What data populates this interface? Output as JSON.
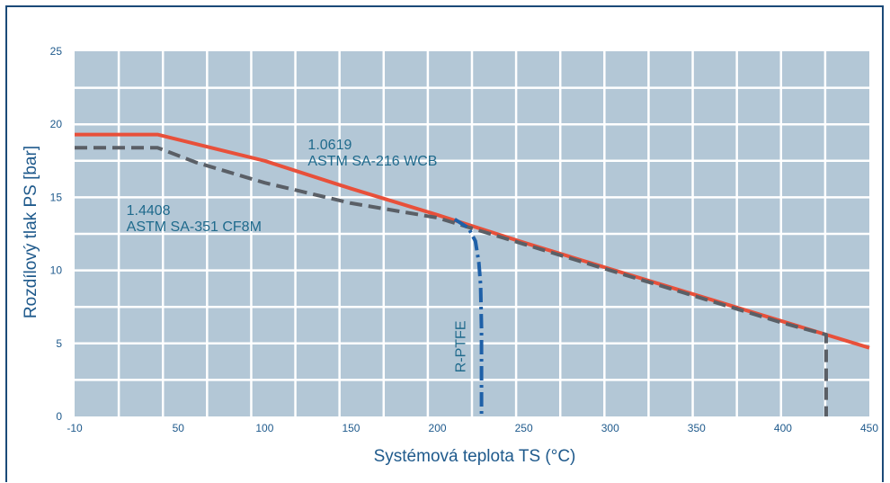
{
  "chart_data": {
    "type": "line",
    "xlabel": "Systémová teplota TS (°C)",
    "ylabel": "Rozdílový tlak PS [bar]",
    "xlim": [
      -10,
      450
    ],
    "ylim": [
      0,
      25
    ],
    "xticks": [
      -10,
      50,
      100,
      150,
      200,
      250,
      300,
      350,
      400,
      450
    ],
    "xtick_labels": [
      "-10",
      "50",
      "100",
      "150",
      "200",
      "250",
      "300",
      "350",
      "400",
      "450"
    ],
    "yticks": [
      0,
      5,
      10,
      15,
      20,
      25
    ],
    "ytick_labels": [
      "0",
      "5",
      "10",
      "15",
      "20",
      "25"
    ],
    "grid": true,
    "series": [
      {
        "name": "1.0619 ASTM SA-216 WCB",
        "style": "solid",
        "color": "#e8503a",
        "points": [
          [
            -10,
            19.3
          ],
          [
            38,
            19.3
          ],
          [
            100,
            17.5
          ],
          [
            150,
            15.6
          ],
          [
            200,
            13.8
          ],
          [
            250,
            11.9
          ],
          [
            300,
            10.1
          ],
          [
            350,
            8.3
          ],
          [
            400,
            6.5
          ],
          [
            450,
            4.7
          ]
        ]
      },
      {
        "name": "1.4408 ASTM SA-351 CF8M",
        "style": "dashed",
        "color": "#5a5f66",
        "points": [
          [
            -10,
            18.4
          ],
          [
            38,
            18.4
          ],
          [
            60,
            17.4
          ],
          [
            100,
            16.0
          ],
          [
            150,
            14.6
          ],
          [
            200,
            13.6
          ],
          [
            250,
            11.8
          ],
          [
            300,
            10.0
          ],
          [
            350,
            8.2
          ],
          [
            400,
            6.4
          ],
          [
            425,
            5.6
          ],
          [
            425,
            0
          ]
        ]
      },
      {
        "name": "R-PTFE",
        "style": "dashdot",
        "color": "#1e60a8",
        "points": [
          [
            210,
            13.5
          ],
          [
            218,
            12.9
          ],
          [
            222,
            12.0
          ],
          [
            224,
            10.5
          ],
          [
            225,
            9.0
          ],
          [
            225.5,
            6.0
          ],
          [
            225.5,
            3.0
          ],
          [
            225.5,
            0
          ]
        ]
      }
    ],
    "annotations": [
      {
        "lines": [
          "1.0619",
          "ASTM SA-216 WCB"
        ],
        "x": 125,
        "y": 18.3
      },
      {
        "lines": [
          "1.4408",
          "ASTM SA-351 CF8M"
        ],
        "x": 20,
        "y": 13.8
      },
      {
        "lines": [
          "R-PTFE"
        ],
        "x": 216,
        "y": 3.0,
        "rotate": -90
      }
    ]
  },
  "colors": {
    "plot_bg": "#b3c7d6",
    "grid": "#ffffff",
    "text": "#1f5a8c",
    "frame": "#1b4a78"
  }
}
